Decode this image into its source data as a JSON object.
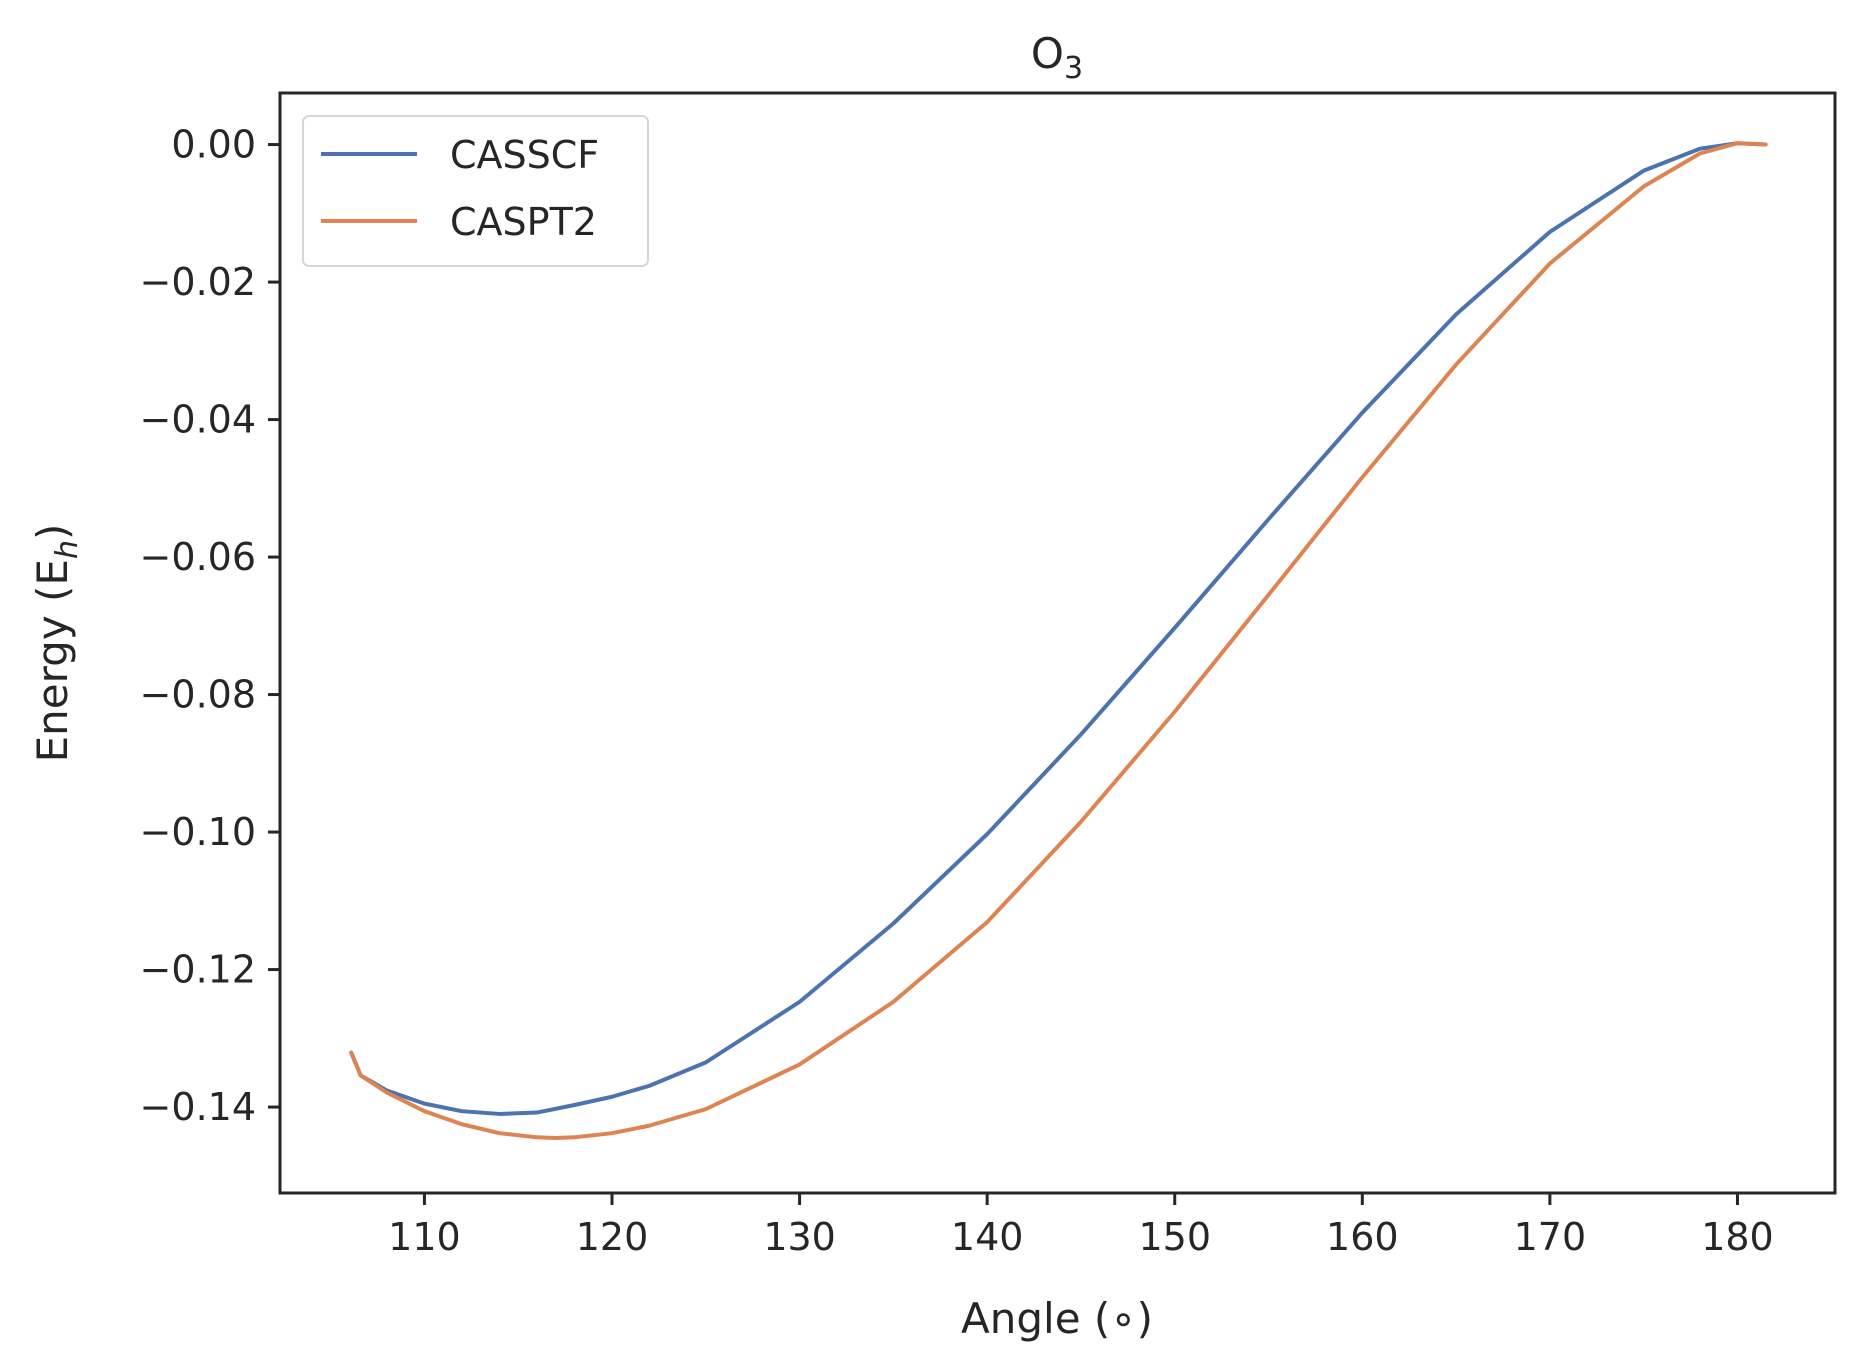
{
  "chart_data": {
    "type": "line",
    "title": "O",
    "title_subscript": "3",
    "xlabel": "Angle (∘)",
    "ylabel": "Energy (E",
    "ylabel_subscript": "h",
    "ylabel_close": ")",
    "xlim": [
      102.3,
      185.2
    ],
    "ylim": [
      -0.1525,
      0.0075
    ],
    "xticks": [
      110,
      120,
      130,
      140,
      150,
      160,
      170,
      180
    ],
    "xtick_labels": [
      "110",
      "120",
      "130",
      "140",
      "150",
      "160",
      "170",
      "180"
    ],
    "yticks": [
      0.0,
      -0.02,
      -0.04,
      -0.06,
      -0.08,
      -0.1,
      -0.12,
      -0.14
    ],
    "ytick_labels": [
      "0.00",
      "−0.02",
      "−0.04",
      "−0.06",
      "−0.08",
      "−0.10",
      "−0.12",
      "−0.14"
    ],
    "grid": false,
    "legend_position": "top-left",
    "series": [
      {
        "name": "CASSCF",
        "color": "#4c72b0",
        "x": [
          106.1,
          106.6,
          108,
          110,
          112,
          114,
          116,
          118,
          120,
          122,
          125,
          130,
          135,
          140,
          145,
          150,
          155,
          160,
          165,
          170,
          175,
          178,
          180,
          181.5
        ],
        "y": [
          -0.1321,
          -0.1354,
          -0.1376,
          -0.1395,
          -0.1406,
          -0.141,
          -0.1408,
          -0.1397,
          -0.1385,
          -0.1369,
          -0.1335,
          -0.1247,
          -0.1133,
          -0.1003,
          -0.0858,
          -0.0703,
          -0.0545,
          -0.039,
          -0.0247,
          -0.0127,
          -0.0038,
          -0.0006,
          0.0002,
          0.0
        ]
      },
      {
        "name": "CASPT2",
        "color": "#dd8452",
        "x": [
          106.1,
          106.6,
          108,
          110,
          112,
          114,
          116,
          117,
          118,
          120,
          122,
          125,
          130,
          135,
          140,
          145,
          150,
          155,
          160,
          165,
          170,
          175,
          178,
          180,
          181.5
        ],
        "y": [
          -0.1321,
          -0.1354,
          -0.1379,
          -0.1406,
          -0.1425,
          -0.1438,
          -0.1444,
          -0.1445,
          -0.1444,
          -0.1438,
          -0.1427,
          -0.1403,
          -0.1338,
          -0.1247,
          -0.1131,
          -0.0985,
          -0.0825,
          -0.0655,
          -0.0484,
          -0.032,
          -0.0173,
          -0.0061,
          -0.0013,
          0.0002,
          0.0
        ]
      }
    ]
  }
}
